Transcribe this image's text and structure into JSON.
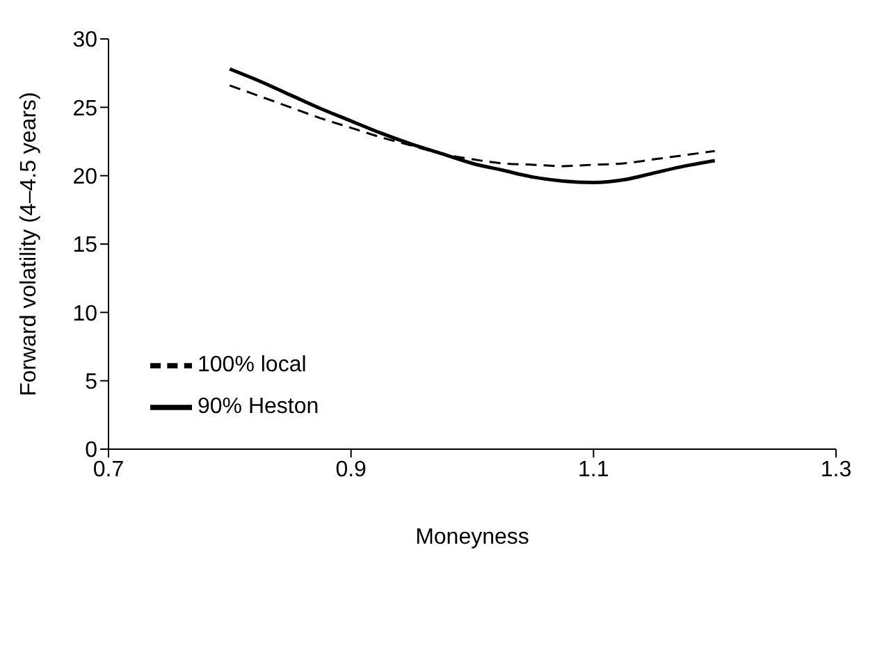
{
  "chart_data": {
    "type": "line",
    "xlabel": "Moneyness",
    "ylabel": "Forward volatility (4–4.5 years)",
    "x": [
      0.8,
      0.825,
      0.85,
      0.875,
      0.9,
      0.925,
      0.95,
      0.975,
      1.0,
      1.025,
      1.05,
      1.075,
      1.1,
      1.125,
      1.15,
      1.175,
      1.2
    ],
    "series": [
      {
        "name": "90% Heston",
        "color": "#000000",
        "line_style": "solid",
        "values": [
          27.8,
          26.9,
          25.9,
          24.9,
          24.0,
          23.1,
          22.3,
          21.6,
          20.9,
          20.4,
          19.9,
          19.6,
          19.5,
          19.7,
          20.2,
          20.7,
          21.1
        ]
      },
      {
        "name": "100% local",
        "color": "#000000",
        "line_style": "dashed",
        "values": [
          26.6,
          25.8,
          25.0,
          24.2,
          23.5,
          22.8,
          22.2,
          21.6,
          21.2,
          20.9,
          20.8,
          20.7,
          20.8,
          20.9,
          21.2,
          21.5,
          21.8
        ]
      }
    ],
    "xlim": [
      0.7,
      1.3
    ],
    "xticks": [
      0.7,
      0.9,
      1.1,
      1.3
    ],
    "ylim": [
      0,
      30
    ],
    "yticks": [
      0,
      5,
      10,
      15,
      20,
      25,
      30
    ],
    "grid": false,
    "legend": "left",
    "marker": "none"
  }
}
